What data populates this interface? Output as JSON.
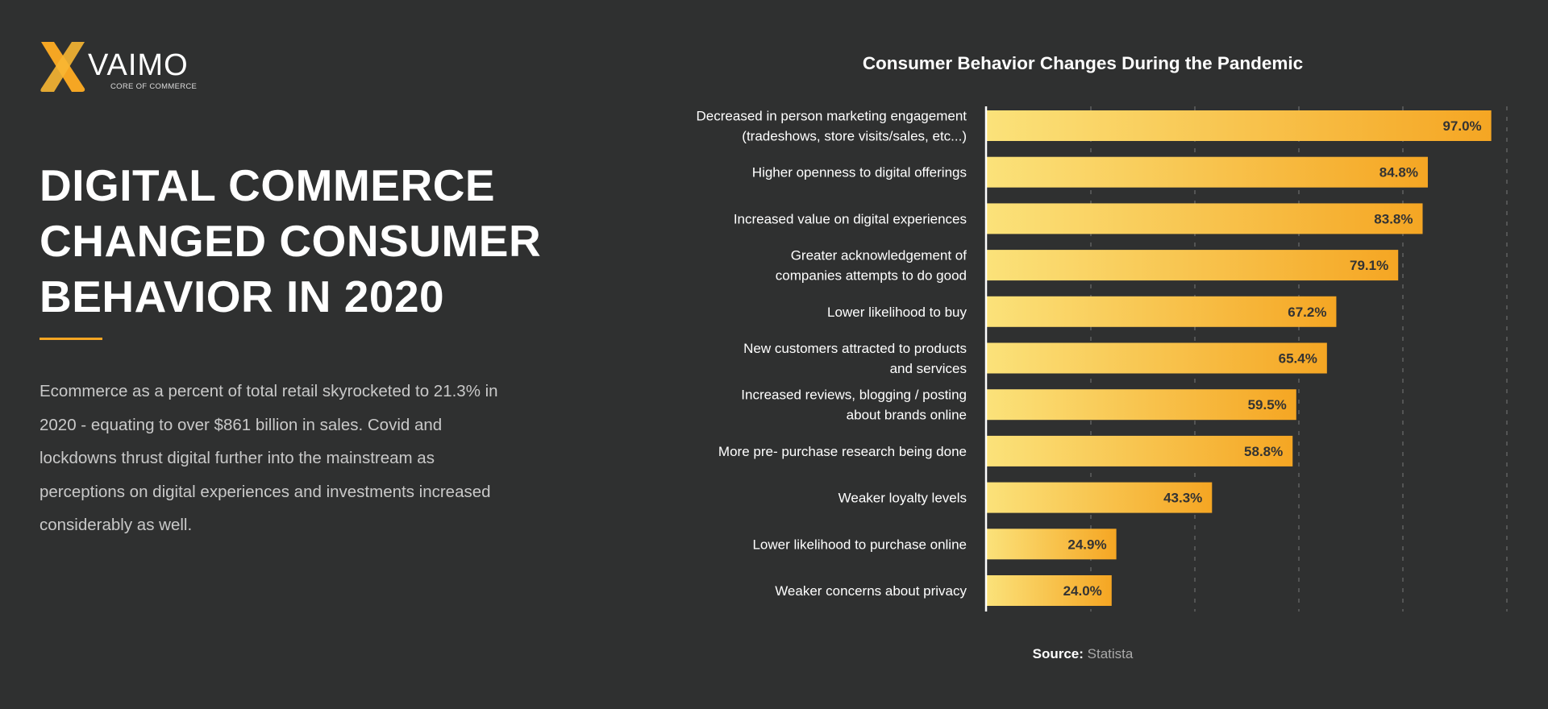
{
  "logo": {
    "name": "VAIMO",
    "tagline": "CORE OF COMMERCE",
    "color": "#f5a623"
  },
  "headline": "DIGITAL COMMERCE CHANGED CONSUMER BEHAVIOR IN 2020",
  "paragraph": "Ecommerce as a percent of total retail skyrocketed to 21.3% in 2020 - equating to over $861 billion in sales. Covid and lockdowns thrust digital further into the mainstream as perceptions on digital experiences and investments increased considerably as well.",
  "source": {
    "label": "Source:",
    "value": "Statista"
  },
  "chart_data": {
    "type": "bar",
    "orientation": "horizontal",
    "title": "Consumer Behavior Changes During the Pandemic",
    "categories": [
      "Decreased in person marketing engagement\n(tradeshows, store visits/sales, etc...)",
      "Higher openness to digital offerings",
      "Increased value on digital experiences",
      "Greater acknowledgement of\ncompanies attempts to do good",
      "Lower likelihood to buy",
      "New customers attracted to products\nand services",
      "Increased reviews, blogging / posting\nabout brands online",
      "More pre- purchase research being done",
      "Weaker loyalty levels",
      "Lower likelihood to purchase online",
      "Weaker concerns about privacy"
    ],
    "values": [
      97.0,
      84.8,
      83.8,
      79.1,
      67.2,
      65.4,
      59.5,
      58.8,
      43.3,
      24.9,
      24.0
    ],
    "value_labels": [
      "97.0%",
      "84.8%",
      "83.8%",
      "79.1%",
      "67.2%",
      "65.4%",
      "59.5%",
      "58.8%",
      "43.3%",
      "24.9%",
      "24.0%"
    ],
    "xlim": [
      0,
      100
    ],
    "grid": "vertical dashed, every 20",
    "colors": {
      "bar_start": "#fbe27a",
      "bar_end": "#f5a623",
      "label_text": "#333333"
    }
  }
}
